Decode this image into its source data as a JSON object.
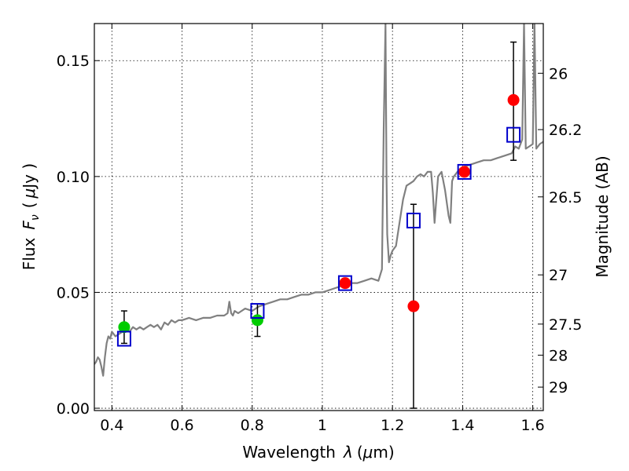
{
  "chart_data": {
    "type": "scatter",
    "title": "",
    "xlabel_text": "Wavelength",
    "xlabel_symbol": "λ",
    "xlabel_unit_open": "(",
    "xlabel_unit_mu": "μ",
    "xlabel_unit_rest": "m)",
    "ylabel_text": "Flux",
    "ylabel_symbol_F": "F",
    "ylabel_symbol_sub": "ν",
    "ylabel_unit_open": "(",
    "ylabel_unit_mu": "μ",
    "ylabel_unit_rest": "Jy )",
    "y2label": "Magnitude (AB)",
    "xlim": [
      0.35,
      1.63
    ],
    "ylim": [
      -0.001,
      0.166
    ],
    "grid": true,
    "x_ticks": [
      {
        "value": 0.4,
        "label": "0.4"
      },
      {
        "value": 0.6,
        "label": "0.6"
      },
      {
        "value": 0.8,
        "label": "0.8"
      },
      {
        "value": 1.0,
        "label": "1"
      },
      {
        "value": 1.2,
        "label": "1.2"
      },
      {
        "value": 1.4,
        "label": "1.4"
      },
      {
        "value": 1.6,
        "label": "1.6"
      }
    ],
    "y_ticks": [
      {
        "value": 0.0,
        "label": "0.00"
      },
      {
        "value": 0.05,
        "label": "0.05"
      },
      {
        "value": 0.1,
        "label": "0.10"
      },
      {
        "value": 0.15,
        "label": "0.15"
      }
    ],
    "y2_ticks": [
      {
        "value": 26,
        "label": "26"
      },
      {
        "value": 26.2,
        "label": "26.2"
      },
      {
        "value": 26.5,
        "label": "26.5"
      },
      {
        "value": 27,
        "label": "27"
      },
      {
        "value": 27.5,
        "label": "27.5"
      },
      {
        "value": 28,
        "label": "28"
      },
      {
        "value": 29,
        "label": "29"
      }
    ],
    "series": [
      {
        "kind": "spectrum",
        "color": "#808080",
        "x": [
          0.35,
          0.355,
          0.36,
          0.365,
          0.37,
          0.375,
          0.38,
          0.385,
          0.39,
          0.395,
          0.4,
          0.41,
          0.42,
          0.43,
          0.44,
          0.45,
          0.46,
          0.47,
          0.48,
          0.49,
          0.5,
          0.51,
          0.52,
          0.53,
          0.54,
          0.55,
          0.56,
          0.57,
          0.58,
          0.59,
          0.6,
          0.62,
          0.64,
          0.66,
          0.68,
          0.7,
          0.72,
          0.73,
          0.735,
          0.74,
          0.745,
          0.75,
          0.76,
          0.78,
          0.8,
          0.82,
          0.84,
          0.86,
          0.88,
          0.9,
          0.92,
          0.94,
          0.96,
          0.98,
          1.0,
          1.02,
          1.04,
          1.06,
          1.08,
          1.1,
          1.12,
          1.14,
          1.16,
          1.17,
          1.175,
          1.18,
          1.183,
          1.185,
          1.19,
          1.195,
          1.2,
          1.21,
          1.22,
          1.23,
          1.24,
          1.25,
          1.26,
          1.27,
          1.28,
          1.29,
          1.3,
          1.31,
          1.315,
          1.32,
          1.325,
          1.33,
          1.34,
          1.35,
          1.36,
          1.365,
          1.37,
          1.375,
          1.38,
          1.39,
          1.4,
          1.42,
          1.44,
          1.46,
          1.48,
          1.5,
          1.52,
          1.54,
          1.55,
          1.56,
          1.57,
          1.575,
          1.58,
          1.59,
          1.6,
          1.605,
          1.61,
          1.62,
          1.63
        ],
        "y": [
          0.019,
          0.02,
          0.022,
          0.021,
          0.018,
          0.014,
          0.022,
          0.028,
          0.031,
          0.03,
          0.033,
          0.031,
          0.032,
          0.033,
          0.034,
          0.033,
          0.035,
          0.034,
          0.035,
          0.034,
          0.035,
          0.036,
          0.035,
          0.036,
          0.034,
          0.037,
          0.036,
          0.038,
          0.037,
          0.038,
          0.038,
          0.039,
          0.038,
          0.039,
          0.039,
          0.04,
          0.04,
          0.041,
          0.046,
          0.041,
          0.04,
          0.042,
          0.041,
          0.043,
          0.042,
          0.044,
          0.045,
          0.046,
          0.047,
          0.047,
          0.048,
          0.049,
          0.049,
          0.05,
          0.05,
          0.051,
          0.052,
          0.053,
          0.054,
          0.054,
          0.055,
          0.056,
          0.055,
          0.06,
          0.12,
          0.166,
          0.1,
          0.075,
          0.063,
          0.066,
          0.068,
          0.07,
          0.08,
          0.09,
          0.096,
          0.097,
          0.098,
          0.1,
          0.101,
          0.1,
          0.102,
          0.102,
          0.093,
          0.08,
          0.09,
          0.1,
          0.102,
          0.094,
          0.083,
          0.08,
          0.098,
          0.1,
          0.101,
          0.103,
          0.104,
          0.105,
          0.106,
          0.107,
          0.107,
          0.108,
          0.109,
          0.11,
          0.113,
          0.112,
          0.116,
          0.166,
          0.112,
          0.113,
          0.114,
          0.166,
          0.112,
          0.114,
          0.115
        ]
      },
      {
        "kind": "model_photometry",
        "color": "#0000cc",
        "marker": "open-square",
        "x": [
          0.435,
          0.815,
          1.065,
          1.26,
          1.405,
          1.545
        ],
        "y": [
          0.03,
          0.042,
          0.054,
          0.081,
          0.102,
          0.118
        ]
      },
      {
        "kind": "observed_optical",
        "color": "#00cc00",
        "marker": "circle",
        "x": [
          0.435,
          0.815
        ],
        "y": [
          0.035,
          0.038
        ],
        "yerr": [
          0.007,
          0.007
        ]
      },
      {
        "kind": "observed_nir",
        "color": "#ff0000",
        "marker": "circle",
        "x": [
          1.065,
          1.26,
          1.405,
          1.545
        ],
        "y": [
          0.054,
          0.044,
          0.102,
          0.133
        ],
        "yerr_low": [
          0.0,
          0.044,
          0.0,
          0.026
        ],
        "yerr_high": [
          0.0,
          0.044,
          0.0,
          0.025
        ]
      }
    ]
  }
}
